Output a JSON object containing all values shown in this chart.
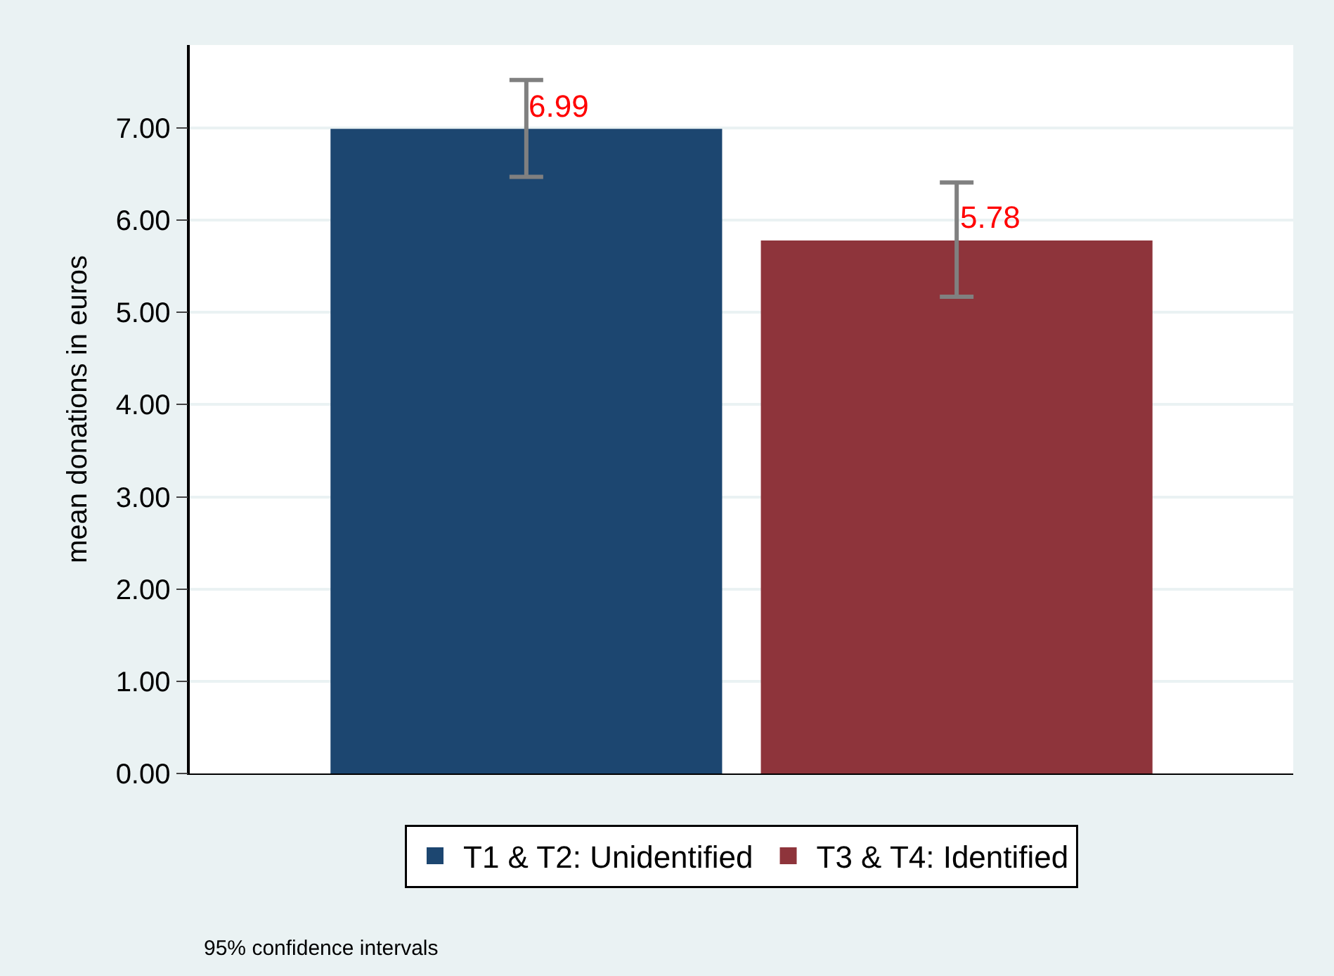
{
  "chart_data": {
    "type": "bar",
    "ylabel": "mean donations in euros",
    "categories": [
      null
    ],
    "series": [
      {
        "name": "T1 & T2: Unidentified",
        "color": "#1c4670",
        "values": [
          6.99
        ],
        "errors": [
          [
            6.47,
            7.52
          ]
        ]
      },
      {
        "name": "T3 & T4: Identified",
        "color": "#8e343b",
        "values": [
          5.78
        ],
        "errors": [
          [
            5.17,
            6.41
          ]
        ]
      }
    ],
    "ylim": [
      0,
      7.9
    ],
    "yticks": [
      {
        "value": 0,
        "label": "0.00"
      },
      {
        "value": 1,
        "label": "1.00"
      },
      {
        "value": 2,
        "label": "2.00"
      },
      {
        "value": 3,
        "label": "3.00"
      },
      {
        "value": 4,
        "label": "4.00"
      },
      {
        "value": 5,
        "label": "5.00"
      },
      {
        "value": 6,
        "label": "6.00"
      },
      {
        "value": 7,
        "label": "7.00"
      }
    ],
    "grid": "y",
    "legend": "bottom",
    "data_labels": true,
    "annotations": [
      "95% confidence intervals"
    ]
  }
}
